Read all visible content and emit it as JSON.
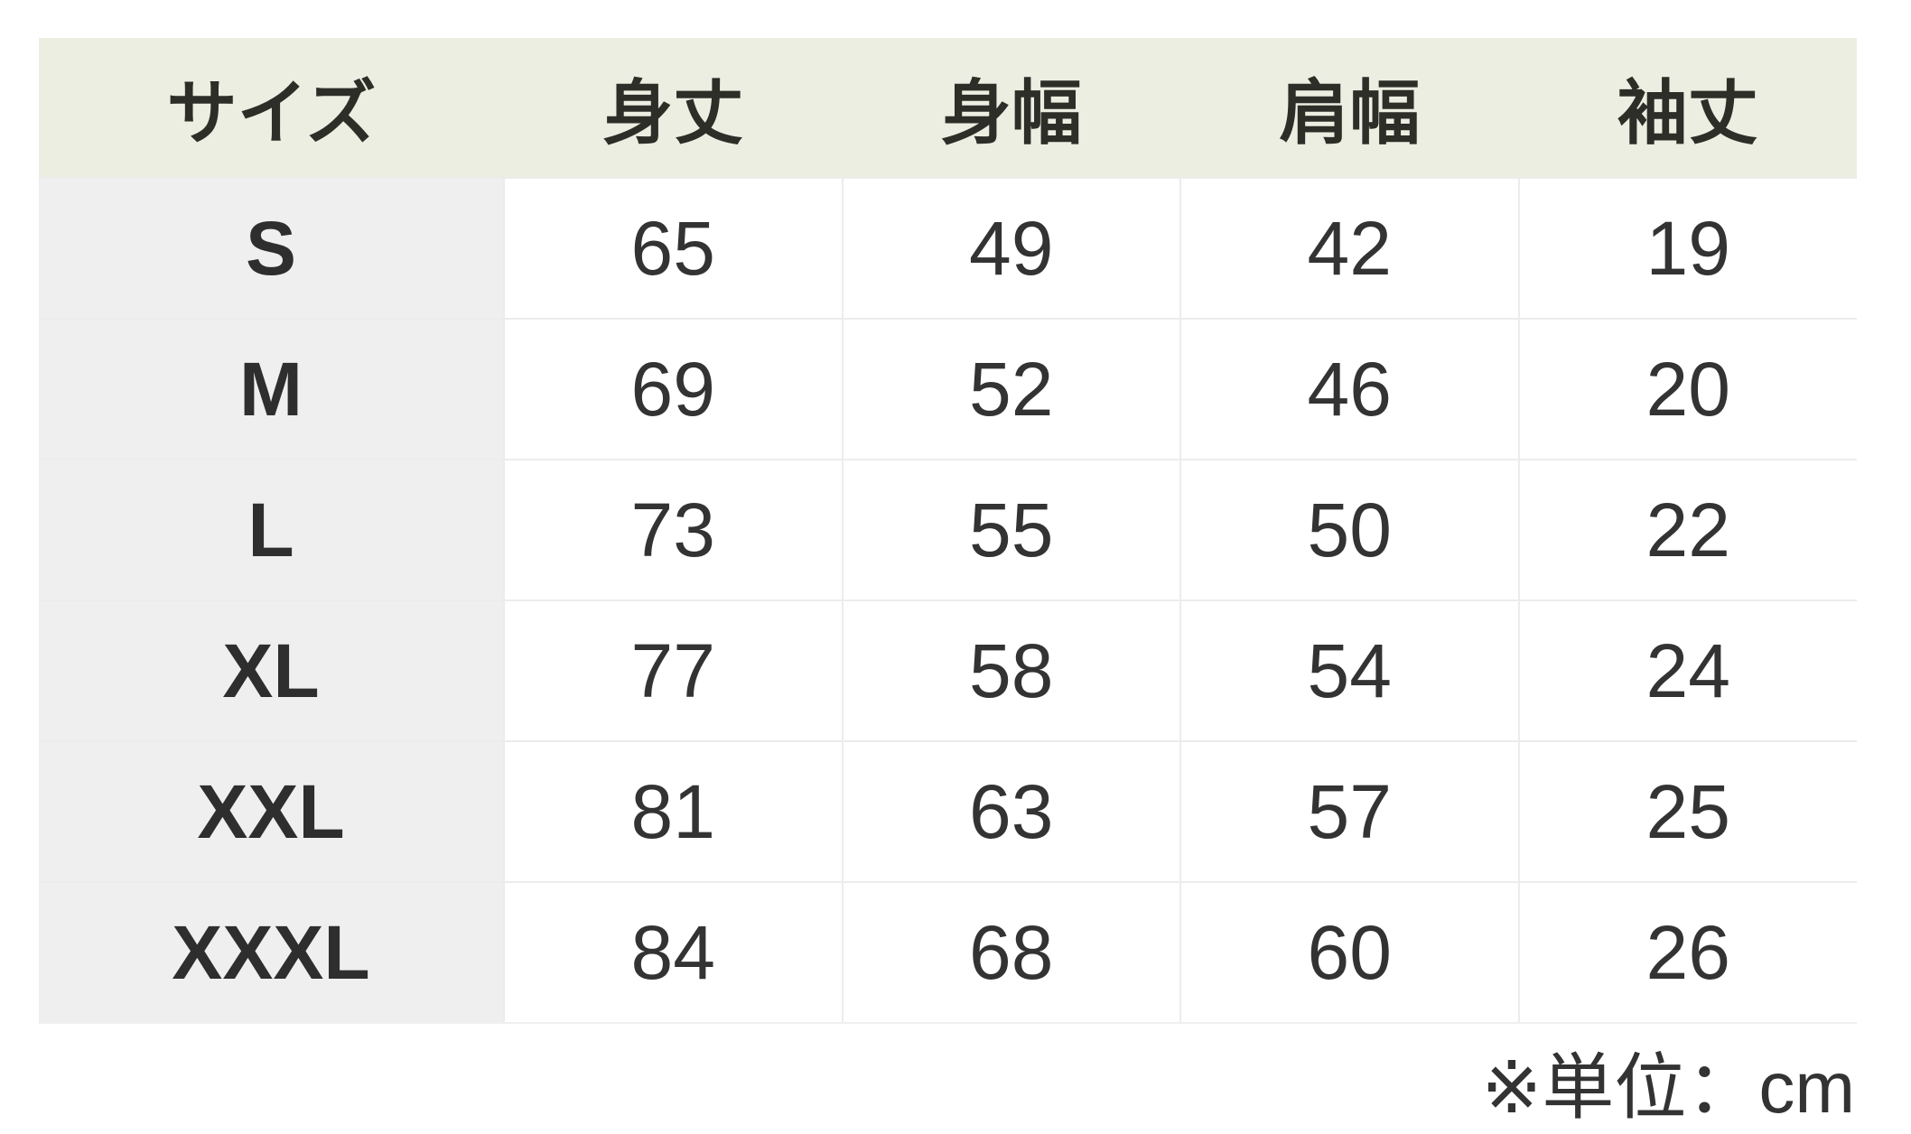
{
  "table": {
    "headers": [
      "サイズ",
      "身丈",
      "身幅",
      "肩幅",
      "袖丈"
    ],
    "rows": [
      [
        "S",
        "65",
        "49",
        "42",
        "19"
      ],
      [
        "M",
        "69",
        "52",
        "46",
        "20"
      ],
      [
        "L",
        "73",
        "55",
        "50",
        "22"
      ],
      [
        "XL",
        "77",
        "58",
        "54",
        "24"
      ],
      [
        "XXL",
        "81",
        "63",
        "57",
        "25"
      ],
      [
        "XXXL",
        "84",
        "68",
        "60",
        "26"
      ]
    ]
  },
  "note": "※単位：cm",
  "colors": {
    "header_bg": "#edeee2",
    "size_col_bg": "#efefef"
  }
}
